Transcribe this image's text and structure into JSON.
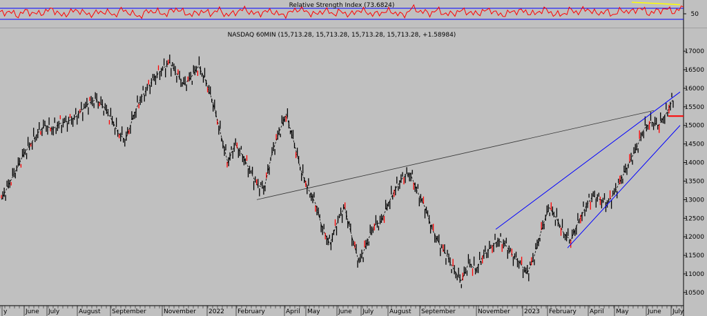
{
  "chart_data": [
    {
      "type": "line",
      "title": "Relative Strength Index (73.6824)",
      "ylim": [
        0,
        100
      ],
      "y_ticks": [
        50
      ],
      "reference_lines": [
        70,
        30
      ],
      "series": [
        {
          "name": "RSI",
          "color": "#ff0000",
          "values": [
            52,
            58,
            44,
            61,
            49,
            55,
            68,
            42,
            57,
            63,
            47,
            53,
            59,
            45,
            66,
            50,
            41,
            62,
            56,
            48,
            70,
            54,
            46,
            60,
            51,
            64,
            43,
            58,
            67,
            49,
            55,
            61,
            44,
            52,
            69,
            57,
            47,
            63,
            50,
            58,
            45,
            65,
            53,
            48,
            60,
            56,
            42,
            71,
            59,
            51,
            64,
            46,
            55,
            62,
            49,
            57,
            66,
            44,
            53,
            61,
            58,
            48,
            67,
            52,
            45,
            63,
            56,
            69,
            50,
            59,
            47,
            64,
            55,
            72,
            51,
            60,
            68,
            57,
            74
          ]
        }
      ],
      "colors": {
        "grid_lines": "#0000ff",
        "trend": "#ffff00",
        "background": "#c0c0c0"
      }
    },
    {
      "type": "line",
      "title": "NASDAQ 60MIN (15,713.28, 15,713.28, 15,713.28, 15,713.28, +1.58984)",
      "y_ticks": [
        10500,
        11000,
        11500,
        12000,
        12500,
        13000,
        13500,
        14000,
        14500,
        15000,
        15500,
        16000,
        16500,
        17000
      ],
      "ylim": [
        10200,
        17300
      ],
      "x_labels": [
        "y",
        "June",
        "July",
        "August",
        "September",
        "November",
        "2022",
        "February",
        "April",
        "May",
        "June",
        "July",
        "August",
        "September",
        "November",
        "2023",
        "February",
        "April",
        "May",
        "June",
        "July"
      ],
      "series": [
        {
          "name": "NASDAQ",
          "color": "#000000",
          "values": [
            13000,
            13400,
            13800,
            14200,
            14500,
            14800,
            15000,
            14900,
            15050,
            15100,
            15200,
            15400,
            15600,
            15700,
            15500,
            15200,
            14800,
            14600,
            15200,
            15700,
            16000,
            16300,
            16500,
            16700,
            16400,
            16100,
            16300,
            16600,
            16200,
            15600,
            14800,
            14000,
            14500,
            14200,
            13800,
            13400,
            13300,
            14200,
            14800,
            15300,
            14600,
            13800,
            13300,
            12900,
            12200,
            11800,
            12400,
            12800,
            12000,
            11300,
            11800,
            12300,
            12400,
            12900,
            13300,
            13600,
            13700,
            13200,
            12800,
            12200,
            11800,
            11500,
            11100,
            10800,
            11300,
            11100,
            11500,
            11700,
            11900,
            11800,
            11500,
            11300,
            11000,
            11500,
            12200,
            12800,
            12500,
            12100,
            11900,
            12400,
            12800,
            13100,
            13000,
            12900,
            13200,
            13600,
            14000,
            14400,
            14900,
            15100,
            15000,
            15300,
            15713
          ]
        }
      ],
      "annotations": [
        {
          "type": "trendline",
          "from": [
            "February",
            13000
          ],
          "to": [
            "June",
            15400
          ],
          "color": "#333333"
        },
        {
          "type": "channel_upper",
          "from": [
            "November",
            12200
          ],
          "to": [
            "July",
            15900
          ],
          "color": "#0000ff"
        },
        {
          "type": "channel_lower",
          "from": [
            "February",
            11700
          ],
          "to": [
            "July",
            15000
          ],
          "color": "#0000ff"
        },
        {
          "type": "horizontal_marker",
          "value": 15250,
          "color": "#ff0000"
        }
      ],
      "grid": false,
      "legend": "none"
    }
  ]
}
